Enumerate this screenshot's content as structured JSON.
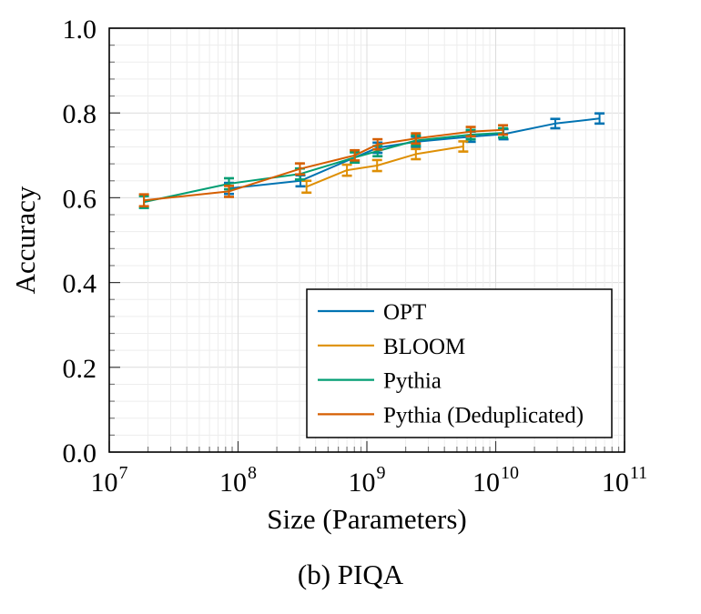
{
  "figure": {
    "caption": "(b) PIQA"
  },
  "chart_data": {
    "type": "line",
    "title": "",
    "xlabel": "Size (Parameters)",
    "ylabel": "Accuracy",
    "x_scale": "log",
    "xlim": [
      10000000.0,
      100000000000.0
    ],
    "ylim": [
      0.0,
      1.0
    ],
    "x_ticks": [
      "10^7",
      "10^8",
      "10^9",
      "10^10",
      "10^11"
    ],
    "y_ticks": [
      0.0,
      0.2,
      0.4,
      0.6,
      0.8,
      1.0
    ],
    "grid": "major and minor, light gray",
    "legend_position": "inside lower right, boxed",
    "error_bars": "vertical with caps",
    "series": [
      {
        "name": "OPT",
        "color": "#0173b2",
        "x": [
          85000000.0,
          305000000.0,
          1210000000.0,
          2400000000.0,
          6400000000.0,
          11500000000.0,
          29000000000.0,
          64000000000.0
        ],
        "y": [
          0.622,
          0.64,
          0.718,
          0.732,
          0.744,
          0.75,
          0.775,
          0.787
        ],
        "err": [
          0.013,
          0.013,
          0.012,
          0.012,
          0.012,
          0.012,
          0.011,
          0.012
        ]
      },
      {
        "name": "BLOOM",
        "color": "#de8f05",
        "x": [
          340000000.0,
          700000000.0,
          1200000000.0,
          2400000000.0,
          5600000000.0
        ],
        "y": [
          0.626,
          0.665,
          0.676,
          0.703,
          0.721
        ],
        "err": [
          0.014,
          0.013,
          0.013,
          0.012,
          0.012
        ]
      },
      {
        "name": "Pythia",
        "color": "#029e73",
        "x": [
          18600000.0,
          85000000.0,
          302000000.0,
          805000000.0,
          1210000000.0,
          2400000000.0,
          6400000000.0,
          11400000000.0
        ],
        "y": [
          0.59,
          0.633,
          0.656,
          0.695,
          0.71,
          0.735,
          0.749,
          0.753
        ],
        "err": [
          0.014,
          0.013,
          0.013,
          0.012,
          0.012,
          0.012,
          0.011,
          0.011
        ]
      },
      {
        "name": "Pythia (Deduplicated)",
        "color": "#d55e00",
        "x": [
          18600000.0,
          85000000.0,
          302000000.0,
          805000000.0,
          1210000000.0,
          2400000000.0,
          6400000000.0,
          11400000000.0
        ],
        "y": [
          0.594,
          0.615,
          0.668,
          0.7,
          0.726,
          0.74,
          0.756,
          0.76
        ],
        "err": [
          0.014,
          0.013,
          0.013,
          0.012,
          0.012,
          0.012,
          0.011,
          0.011
        ]
      }
    ]
  }
}
